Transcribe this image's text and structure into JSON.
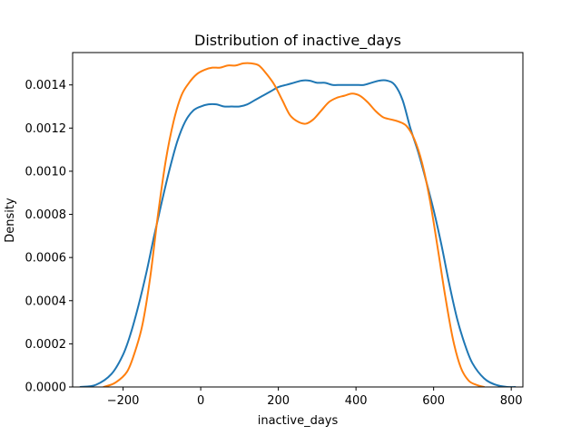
{
  "chart_data": {
    "type": "line",
    "title": "Distribution of inactive_days",
    "xlabel": "inactive_days",
    "ylabel": "Density",
    "xlim": [
      -330,
      830
    ],
    "ylim": [
      0,
      0.00155
    ],
    "xticks": [
      -200,
      0,
      200,
      400,
      600,
      800
    ],
    "xtick_labels": [
      "−200",
      "0",
      "200",
      "400",
      "600",
      "800"
    ],
    "yticks": [
      0,
      0.0002,
      0.0004,
      0.0006,
      0.0008,
      0.001,
      0.0012,
      0.0014
    ],
    "ytick_labels": [
      "0.0000",
      "0.0002",
      "0.0004",
      "0.0006",
      "0.0008",
      "0.0010",
      "0.0012",
      "0.0014"
    ],
    "grid": false,
    "legend": false,
    "series": [
      {
        "color": "#1f77b4",
        "x": [
          -310,
          -270,
          -230,
          -200,
          -180,
          -160,
          -140,
          -120,
          -100,
          -80,
          -60,
          -40,
          -20,
          0,
          20,
          40,
          60,
          80,
          100,
          120,
          140,
          160,
          180,
          200,
          220,
          240,
          260,
          280,
          300,
          320,
          340,
          360,
          380,
          400,
          420,
          440,
          460,
          480,
          500,
          520,
          540,
          560,
          580,
          600,
          620,
          640,
          660,
          680,
          700,
          730,
          760,
          790,
          810
        ],
        "y": [
          0.0,
          1e-05,
          6e-05,
          0.00015,
          0.00025,
          0.00038,
          0.00053,
          0.0007,
          0.00086,
          0.00101,
          0.00114,
          0.00123,
          0.00128,
          0.0013,
          0.00131,
          0.00131,
          0.0013,
          0.0013,
          0.0013,
          0.00131,
          0.00133,
          0.00135,
          0.00137,
          0.00139,
          0.0014,
          0.00141,
          0.00142,
          0.00142,
          0.00141,
          0.00141,
          0.0014,
          0.0014,
          0.0014,
          0.0014,
          0.0014,
          0.00141,
          0.00142,
          0.00142,
          0.0014,
          0.00133,
          0.0012,
          0.00109,
          0.00096,
          0.00082,
          0.00066,
          0.00048,
          0.00032,
          0.0002,
          0.00011,
          4e-05,
          1e-05,
          0.0,
          0.0
        ]
      },
      {
        "color": "#ff7f0e",
        "x": [
          -250,
          -220,
          -190,
          -170,
          -150,
          -130,
          -110,
          -90,
          -70,
          -50,
          -30,
          -10,
          10,
          30,
          50,
          70,
          90,
          110,
          130,
          150,
          170,
          190,
          210,
          230,
          250,
          270,
          290,
          310,
          330,
          350,
          370,
          390,
          410,
          430,
          450,
          470,
          490,
          510,
          530,
          550,
          570,
          590,
          610,
          630,
          650,
          670,
          690,
          710,
          730
        ],
        "y": [
          0.0,
          2e-05,
          7e-05,
          0.00016,
          0.00029,
          0.00051,
          0.0008,
          0.00105,
          0.00123,
          0.00135,
          0.00141,
          0.00145,
          0.00147,
          0.00148,
          0.00148,
          0.00149,
          0.00149,
          0.0015,
          0.0015,
          0.00149,
          0.00145,
          0.0014,
          0.00133,
          0.00126,
          0.00123,
          0.00122,
          0.00124,
          0.00128,
          0.00132,
          0.00134,
          0.00135,
          0.00136,
          0.00135,
          0.00132,
          0.00128,
          0.00125,
          0.00124,
          0.00123,
          0.00121,
          0.00115,
          0.00104,
          0.00087,
          0.00065,
          0.00042,
          0.00022,
          9e-05,
          3e-05,
          1e-05,
          0.0
        ]
      }
    ]
  }
}
